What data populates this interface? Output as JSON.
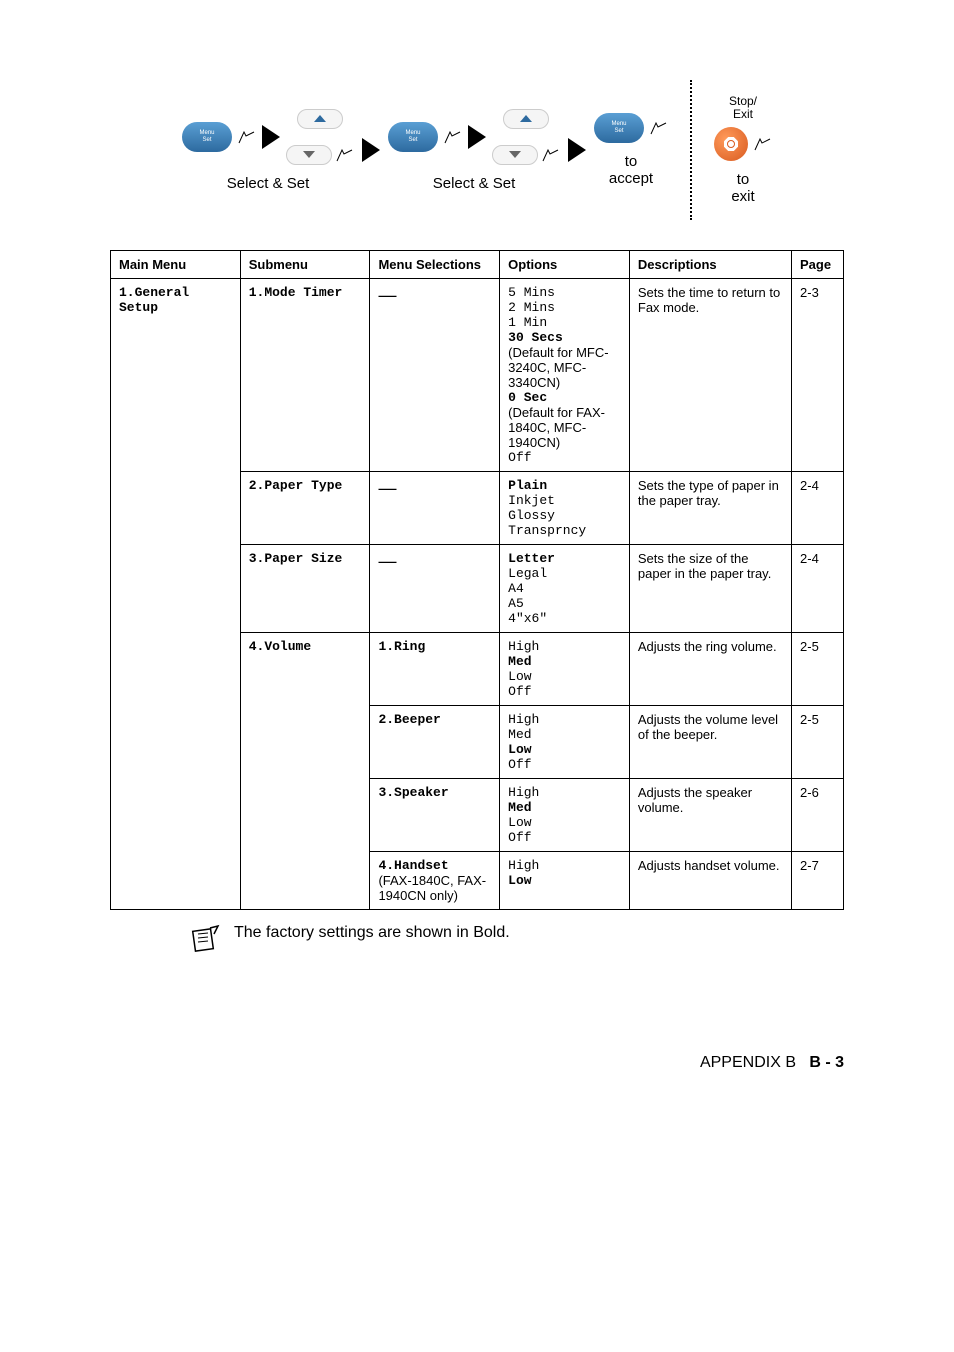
{
  "diagram": {
    "select_set": "Select & Set",
    "to_accept_line1": "to",
    "to_accept_line2": "accept",
    "to_exit_line1": "to",
    "to_exit_line2": "exit",
    "stop_exit_line1": "Stop/",
    "stop_exit_line2": "Exit"
  },
  "table": {
    "headers": {
      "main_menu": "Main Menu",
      "submenu": "Submenu",
      "menu_selections": "Menu Selections",
      "options": "Options",
      "descriptions": "Descriptions",
      "page": "Page"
    },
    "main_menu_1": "1.General Setup",
    "rows": [
      {
        "submenu": "1.Mode Timer",
        "selection": "—",
        "options": [
          {
            "text": "5 Mins",
            "bold": false,
            "mono": true
          },
          {
            "text": "2 Mins",
            "bold": false,
            "mono": true
          },
          {
            "text": "1 Min",
            "bold": false,
            "mono": true
          },
          {
            "text": "30 Secs",
            "bold": true,
            "mono": true
          },
          {
            "text": "(Default for MFC-3240C, MFC-3340CN)",
            "bold": false,
            "mono": false
          },
          {
            "text": "0 Sec",
            "bold": true,
            "mono": true
          },
          {
            "text": "(Default for FAX-1840C, MFC-1940CN)",
            "bold": false,
            "mono": false
          },
          {
            "text": "Off",
            "bold": false,
            "mono": true
          }
        ],
        "description": "Sets the time to return to Fax mode.",
        "page": "2-3"
      },
      {
        "submenu": "2.Paper Type",
        "selection": "—",
        "options": [
          {
            "text": "Plain",
            "bold": true,
            "mono": true
          },
          {
            "text": "Inkjet",
            "bold": false,
            "mono": true
          },
          {
            "text": "Glossy",
            "bold": false,
            "mono": true
          },
          {
            "text": "Transprncy",
            "bold": false,
            "mono": true
          }
        ],
        "description": "Sets the type of paper in the paper tray.",
        "page": "2-4"
      },
      {
        "submenu": "3.Paper Size",
        "selection": "—",
        "options": [
          {
            "text": "Letter",
            "bold": true,
            "mono": true
          },
          {
            "text": "Legal",
            "bold": false,
            "mono": true
          },
          {
            "text": "A4",
            "bold": false,
            "mono": true
          },
          {
            "text": "A5",
            "bold": false,
            "mono": true
          },
          {
            "text": "4\"x6\"",
            "bold": false,
            "mono": true
          }
        ],
        "description": "Sets the size of the paper in the paper tray.",
        "page": "2-4"
      },
      {
        "submenu": "4.Volume",
        "selection": "1.Ring",
        "options": [
          {
            "text": "High",
            "bold": false,
            "mono": true
          },
          {
            "text": "Med",
            "bold": true,
            "mono": true
          },
          {
            "text": "Low",
            "bold": false,
            "mono": true
          },
          {
            "text": "Off",
            "bold": false,
            "mono": true
          }
        ],
        "description": "Adjusts the ring volume.",
        "page": "2-5"
      },
      {
        "submenu": "",
        "selection": "2.Beeper",
        "options": [
          {
            "text": "High",
            "bold": false,
            "mono": true
          },
          {
            "text": "Med",
            "bold": false,
            "mono": true
          },
          {
            "text": "Low",
            "bold": true,
            "mono": true
          },
          {
            "text": "Off",
            "bold": false,
            "mono": true
          }
        ],
        "description": "Adjusts the volume level of the beeper.",
        "page": "2-5"
      },
      {
        "submenu": "",
        "selection": "3.Speaker",
        "options": [
          {
            "text": "High",
            "bold": false,
            "mono": true
          },
          {
            "text": "Med",
            "bold": true,
            "mono": true
          },
          {
            "text": "Low",
            "bold": false,
            "mono": true
          },
          {
            "text": "Off",
            "bold": false,
            "mono": true
          }
        ],
        "description": "Adjusts the speaker volume.",
        "page": "2-6"
      },
      {
        "submenu": "",
        "selection_lines": [
          {
            "text": "4.Handset",
            "bold": true,
            "mono": true
          },
          {
            "text": "(FAX-1840C, FAX-1940CN only)",
            "bold": false,
            "mono": false
          }
        ],
        "options": [
          {
            "text": "High",
            "bold": false,
            "mono": true
          },
          {
            "text": "Low",
            "bold": true,
            "mono": true
          }
        ],
        "description": "Adjusts handset volume.",
        "page": "2-7"
      }
    ]
  },
  "note": "The factory settings are shown in Bold.",
  "footer": {
    "appendix": "APPENDIX B",
    "page": "B - 3"
  }
}
